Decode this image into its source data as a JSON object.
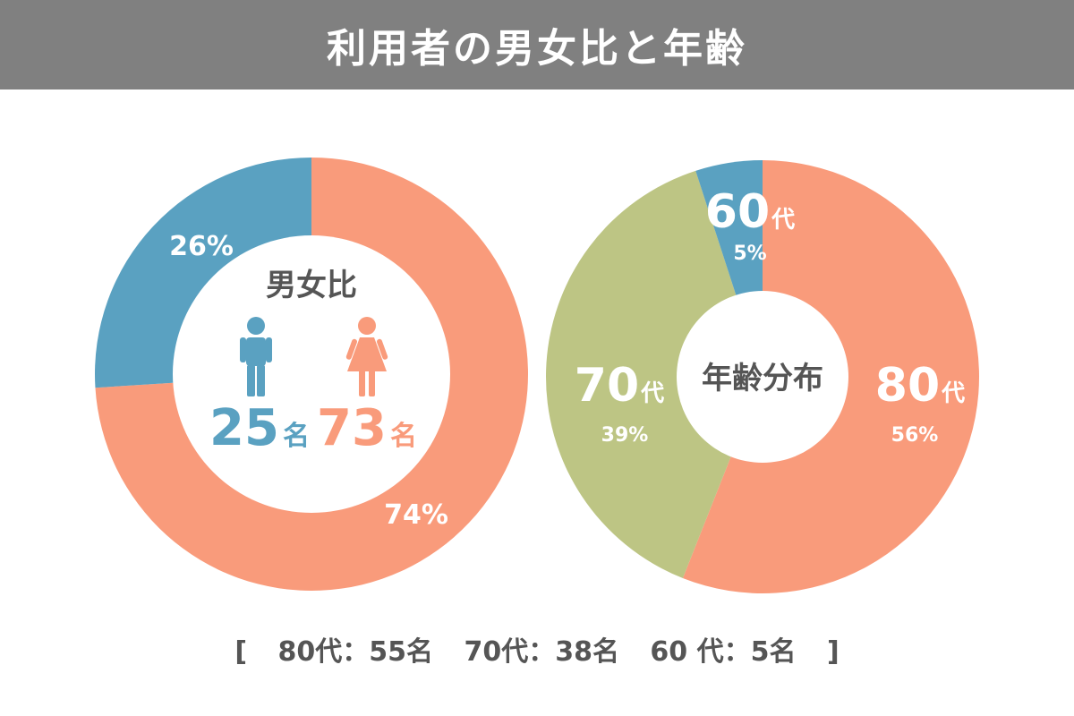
{
  "title": "利用者の男女比と年齢",
  "colors": {
    "header": "#808080",
    "male": "#5aa1c1",
    "female": "#f99b7b",
    "age80": "#f99b7b",
    "age70": "#bdc584",
    "age60": "#5aa1c1",
    "center_text": "#555555"
  },
  "chart_data": [
    {
      "type": "pie",
      "title": "男女比",
      "slices": [
        {
          "label": "74%",
          "value": 74,
          "count_value": "73",
          "count_unit": "名",
          "color": "#f99b7b",
          "icon": "female-icon"
        },
        {
          "label": "26%",
          "value": 26,
          "count_value": "25",
          "count_unit": "名",
          "color": "#5aa1c1",
          "icon": "male-icon"
        }
      ]
    },
    {
      "type": "pie",
      "title": "年齢分布",
      "slices": [
        {
          "name_num": "80",
          "name_unit": "代",
          "percent": "56%",
          "value": 56,
          "color": "#f99b7b"
        },
        {
          "name_num": "70",
          "name_unit": "代",
          "percent": "39%",
          "value": 39,
          "color": "#bdc584"
        },
        {
          "name_num": "60",
          "name_unit": "代",
          "percent": "5%",
          "value": 5,
          "color": "#5aa1c1"
        }
      ]
    }
  ],
  "footer": {
    "open": "[",
    "items": [
      "80代：55名",
      "70代：38名",
      "60 代：5名"
    ],
    "close": "]"
  }
}
